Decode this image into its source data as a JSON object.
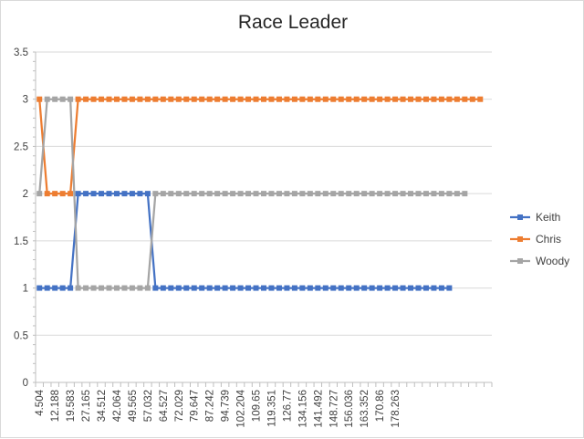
{
  "chart_data": {
    "type": "line",
    "title": "Race Leader",
    "xlabel": "",
    "ylabel": "",
    "ylim": [
      0,
      3.5
    ],
    "y_ticks": [
      "0",
      "0.5",
      "1",
      "1.5",
      "2",
      "2.5",
      "3",
      "3.5"
    ],
    "grid": true,
    "legend_position": "right",
    "x_tick_labels": [
      "4.504",
      "12.188",
      "19.583",
      "27.165",
      "34.512",
      "42.064",
      "49.565",
      "57.032",
      "64.527",
      "72.029",
      "79.647",
      "87.242",
      "94.739",
      "102.204",
      "109.65",
      "119.351",
      "126.77",
      "134.156",
      "141.492",
      "148.727",
      "156.036",
      "163.352",
      "170.86",
      "178.263"
    ],
    "series": [
      {
        "name": "Keith",
        "color": "#4472C4",
        "segments": [
          {
            "from": 0,
            "to": 4,
            "value": 1
          },
          {
            "from": 5,
            "to": 14,
            "value": 2
          },
          {
            "from": 15,
            "to": 53,
            "value": 1
          }
        ]
      },
      {
        "name": "Chris",
        "color": "#ED7D31",
        "segments": [
          {
            "from": 0,
            "to": 0,
            "value": 3
          },
          {
            "from": 1,
            "to": 4,
            "value": 2
          },
          {
            "from": 5,
            "to": 57,
            "value": 3
          }
        ]
      },
      {
        "name": "Woody",
        "color": "#A5A5A5",
        "segments": [
          {
            "from": 0,
            "to": 0,
            "value": 2
          },
          {
            "from": 1,
            "to": 4,
            "value": 3
          },
          {
            "from": 5,
            "to": 14,
            "value": 1
          },
          {
            "from": 15,
            "to": 55,
            "value": 2
          }
        ]
      }
    ]
  }
}
